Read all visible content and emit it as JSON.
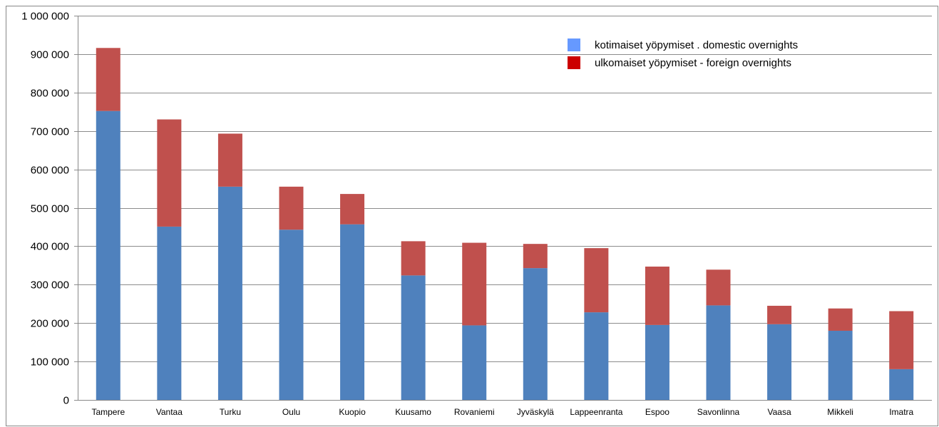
{
  "chart_data": {
    "type": "bar",
    "stacked": true,
    "categories": [
      "Tampere",
      "Vantaa",
      "Turku",
      "Oulu",
      "Kuopio",
      "Kuusamo",
      "Rovaniemi",
      "Jyväskylä",
      "Lappeenranta",
      "Espoo",
      "Savonlinna",
      "Vaasa",
      "Mikkeli",
      "Imatra"
    ],
    "series": [
      {
        "name": "kotimaiset yöpymiset . domestic overnights",
        "color": "#4f81bd",
        "legend_color": "#6699ff",
        "values": [
          752000,
          451000,
          555000,
          443000,
          457000,
          324000,
          194000,
          343000,
          228000,
          195000,
          246000,
          197000,
          180000,
          80000
        ]
      },
      {
        "name": "ulkomaiset yöpymiset - foreign overnights",
        "color": "#c0504d",
        "legend_color": "#cc0000",
        "values": [
          164000,
          279000,
          138000,
          112000,
          79000,
          89000,
          215000,
          63000,
          167000,
          152000,
          93000,
          48000,
          58000,
          151000
        ]
      }
    ],
    "ylim": [
      0,
      1000000
    ],
    "yticks": [
      0,
      100000,
      200000,
      300000,
      400000,
      500000,
      600000,
      700000,
      800000,
      900000,
      1000000
    ],
    "ytick_labels": [
      "0",
      "100 000",
      "200 000",
      "300 000",
      "400 000",
      "500 000",
      "600 000",
      "700 000",
      "800 000",
      "900 000",
      "1 000 000"
    ],
    "grid": true,
    "legend_position": "top-right",
    "title": "",
    "xlabel": "",
    "ylabel": ""
  }
}
